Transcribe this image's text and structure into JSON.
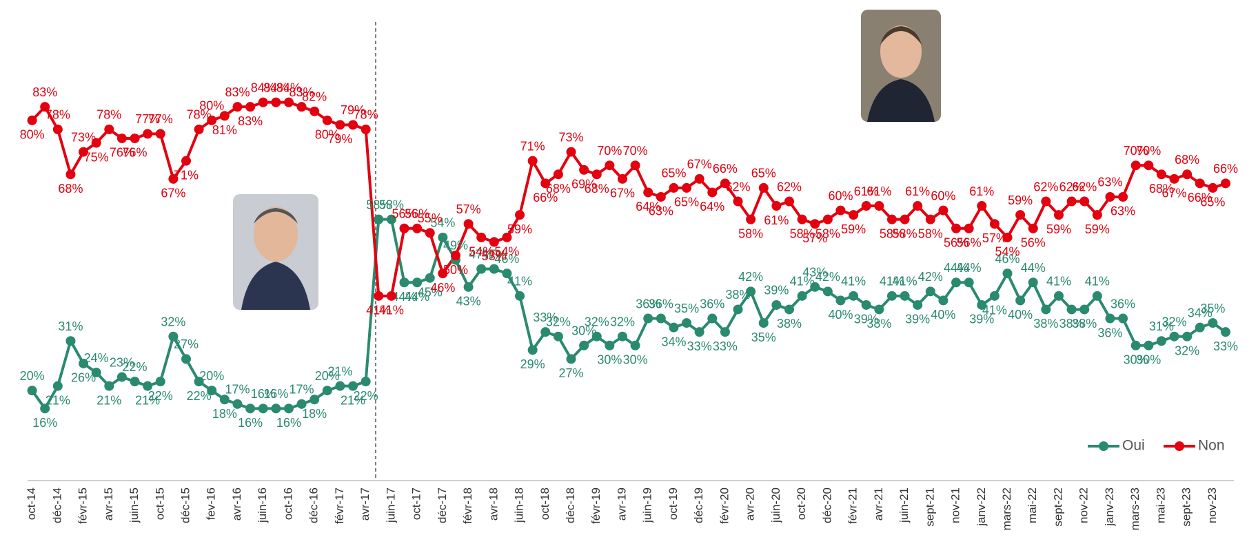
{
  "chart_data": {
    "type": "line",
    "categories": [
      "oct-14",
      null,
      "déc-14",
      null,
      "févr-15",
      null,
      "avr-15",
      null,
      "juin-15",
      null,
      "oct-15",
      null,
      "déc-15",
      null,
      "fev-16",
      null,
      "avr-16",
      null,
      "juin-16",
      null,
      "oct-16",
      null,
      "déc-16",
      null,
      "févr-17",
      null,
      "avr-17",
      null,
      "juin-17",
      null,
      "oct-17",
      null,
      "déc-17",
      null,
      "févr-18",
      null,
      "avr-18",
      null,
      "juin-18",
      null,
      "oct-18",
      null,
      "déc-18",
      null,
      "févr-19",
      null,
      "avr-19",
      null,
      "juin-19",
      null,
      "oct-19",
      null,
      "déc-19",
      null,
      "févr-20",
      null,
      "avr-20",
      null,
      "juin-20",
      null,
      "oct-20",
      null,
      "déc-20",
      null,
      "févr-21",
      null,
      "avr-21",
      null,
      "juin-21",
      null,
      "sept-21",
      null,
      "nov-21",
      null,
      "janv-22",
      null,
      "mars-22",
      null,
      "mai-22",
      null,
      "sept-22",
      null,
      "nov-22",
      null,
      "janv-23",
      null,
      "mars-23",
      null,
      "mai-23",
      null,
      "sept-23",
      null,
      "nov-23",
      null
    ],
    "ylim": [
      0,
      100
    ],
    "legend": "bottom-right",
    "series": [
      {
        "name": "Oui",
        "color": "#2a8a6e",
        "values": [
          20,
          16,
          21,
          31,
          26,
          24,
          21,
          23,
          22,
          21,
          22,
          32,
          27,
          22,
          20,
          18,
          17,
          16,
          16,
          16,
          16,
          17,
          18,
          20,
          21,
          21,
          22,
          58,
          58,
          44,
          44,
          45,
          54,
          49,
          43,
          47,
          47,
          46,
          41,
          29,
          33,
          32,
          27,
          30,
          32,
          30,
          32,
          30,
          36,
          36,
          34,
          35,
          33,
          36,
          33,
          38,
          42,
          35,
          39,
          38,
          41,
          43,
          42,
          40,
          41,
          39,
          38,
          41,
          41,
          39,
          42,
          40,
          44,
          44,
          39,
          41,
          46,
          40,
          44,
          38,
          41,
          38,
          38,
          41,
          36,
          36,
          30,
          30,
          31,
          32,
          32,
          34,
          35,
          33
        ],
        "value_labels": [
          "20%",
          "16%",
          "21%",
          "31%",
          "26%",
          "24%",
          "21%",
          "23%",
          "22%",
          "21%",
          "22%",
          "32%",
          "27%",
          "22%",
          "20%",
          "18%",
          "17%",
          "16%",
          "16%",
          "16%",
          "16%",
          "17%",
          "18%",
          "20%",
          "21%",
          "21%",
          "22%",
          "58%",
          "58%",
          "44%",
          "44%",
          "45%",
          "54%",
          "49%",
          "43%",
          "47%",
          "47%",
          "46%",
          "41%",
          "29%",
          "33%",
          "32%",
          "27%",
          "30%",
          "32%",
          "30%",
          "32%",
          "30%",
          "36%",
          "36%",
          "34%",
          "35%",
          "33%",
          "36%",
          "33%",
          "38%",
          "42%",
          "35%",
          "39%",
          "38%",
          "41%",
          "43%",
          "42%",
          "40%",
          "41%",
          "39%",
          "38%",
          "41%",
          "41%",
          "39%",
          "42%",
          "40%",
          "44%",
          "44%",
          "39%",
          "41%",
          "46%",
          "40%",
          "44%",
          "38%",
          "41%",
          "38%",
          "38%",
          "41%",
          "36%",
          "36%",
          "30%",
          "30%",
          "31%",
          "32%",
          "32%",
          "34%",
          "35%",
          "33%"
        ]
      },
      {
        "name": "Non",
        "color": "#e3000f",
        "values": [
          80,
          83,
          78,
          68,
          73,
          75,
          78,
          76,
          76,
          77,
          77,
          67,
          71,
          78,
          80,
          81,
          83,
          83,
          84,
          84,
          84,
          83,
          82,
          80,
          79,
          79,
          78,
          41,
          41,
          56,
          56,
          55,
          46,
          50,
          57,
          54,
          53,
          54,
          59,
          71,
          66,
          68,
          73,
          69,
          68,
          70,
          67,
          70,
          64,
          63,
          65,
          65,
          67,
          64,
          66,
          62,
          58,
          65,
          61,
          62,
          58,
          57,
          58,
          60,
          59,
          61,
          61,
          58,
          58,
          61,
          58,
          60,
          56,
          56,
          61,
          57,
          54,
          59,
          56,
          62,
          59,
          62,
          62,
          59,
          63,
          63,
          70,
          70,
          68,
          67,
          68,
          66,
          65,
          66
        ],
        "value_labels": [
          "80%",
          "83%",
          "78%",
          "68%",
          "73%",
          "75%",
          "78%",
          "76%",
          "76%",
          "77%",
          "77%",
          "67%",
          "71%",
          "78%",
          "80%",
          "81%",
          "83%",
          "83%",
          "84%",
          "84%",
          "84%",
          "83%",
          "82%",
          "80%",
          "79%",
          "79%",
          "78%",
          "41%",
          "41%",
          "56%",
          "56%",
          "55%",
          "46%",
          "50%",
          "57%",
          "54%",
          "53%",
          "54%",
          "59%",
          "71%",
          "66%",
          "68%",
          "73%",
          "69%",
          "68%",
          "70%",
          "67%",
          "70%",
          "64%",
          "63%",
          "65%",
          "65%",
          "67%",
          "64%",
          "66%",
          "62%",
          "58%",
          "65%",
          "61%",
          "62%",
          "58%",
          "57%",
          "58%",
          "60%",
          "59%",
          "61%",
          "61%",
          "58%",
          "58%",
          "61%",
          "58%",
          "60%",
          "56%",
          "56%",
          "61%",
          "57%",
          "54%",
          "59%",
          "56%",
          "62%",
          "59%",
          "62%",
          "62%",
          "59%",
          "63%",
          "63%",
          "70%",
          "70%",
          "68%",
          "67%",
          "68%",
          "66%",
          "65%",
          "66%"
        ]
      }
    ]
  }
}
